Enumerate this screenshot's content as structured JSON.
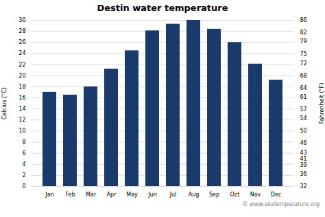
{
  "chart_data": {
    "type": "bar",
    "title": "Destin water temperature",
    "categories": [
      "Jan",
      "Feb",
      "Mar",
      "Apr",
      "May",
      "Jun",
      "Jul",
      "Aug",
      "Sep",
      "Oct",
      "Nov",
      "Dec"
    ],
    "values": [
      17.0,
      16.5,
      18.0,
      21.2,
      24.5,
      28.1,
      29.3,
      30.0,
      28.4,
      26.0,
      22.1,
      19.2
    ],
    "color": "#1a3a6b",
    "ylabel": "Celcius (°C)",
    "y2label": "Fahrenheit (°F)",
    "ylim": [
      0,
      30
    ],
    "yticks": [
      0,
      2,
      4,
      6,
      8,
      10,
      12,
      14,
      16,
      18,
      20,
      22,
      24,
      26,
      28,
      30
    ],
    "y2lim": [
      32,
      86
    ],
    "y2ticks": [
      32,
      36,
      39,
      41,
      43,
      46,
      50,
      54,
      57,
      61,
      64,
      68,
      72,
      75,
      79,
      82,
      86
    ],
    "grid": true,
    "annotations": [
      "© www.seatemperature.org"
    ]
  }
}
